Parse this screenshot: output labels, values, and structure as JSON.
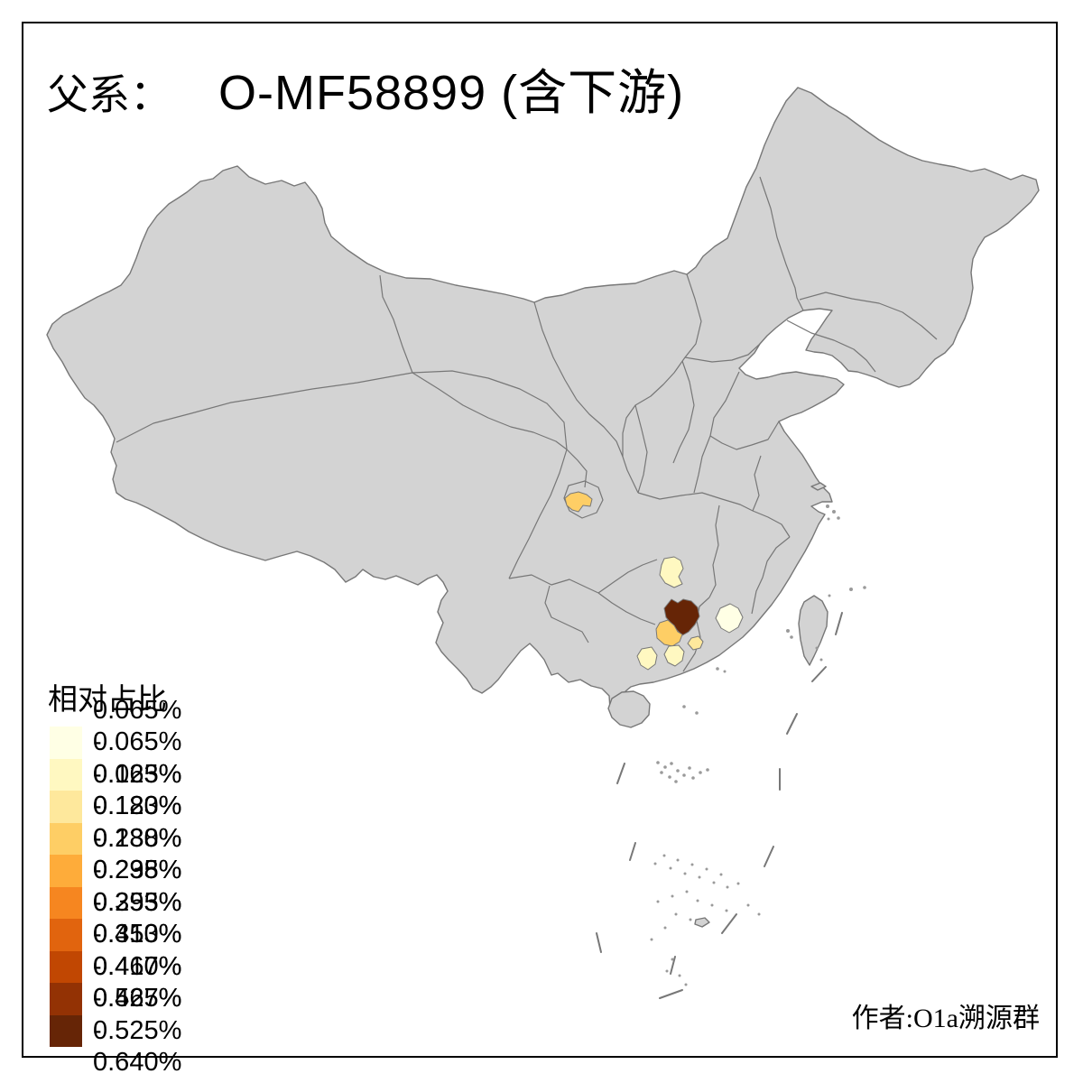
{
  "title": {
    "label": "父系：",
    "value": "O-MF58899 (含下游)"
  },
  "legend": {
    "title": "相对占比",
    "items": [
      {
        "range": "0.065% - 0.065%",
        "color": "#FFFFE5"
      },
      {
        "range": "0.065% - 0.123%",
        "color": "#FFF8C1"
      },
      {
        "range": "0.123% - 0.180%",
        "color": "#FEE89C"
      },
      {
        "range": "0.180% - 0.238%",
        "color": "#FECE65"
      },
      {
        "range": "0.238% - 0.295%",
        "color": "#FEAC3A"
      },
      {
        "range": "0.295% - 0.353%",
        "color": "#F68620"
      },
      {
        "range": "0.353% - 0.410%",
        "color": "#E1640E"
      },
      {
        "range": "0.410% - 0.467%",
        "color": "#C14702"
      },
      {
        "range": "0.467% - 0.525%",
        "color": "#933204"
      },
      {
        "range": "0.525% - 0.640%",
        "color": "#662506"
      }
    ]
  },
  "author": "作者:O1a溯源群",
  "map": {
    "land_fill": "#D3D3D3",
    "border_color": "#777777",
    "background": "#FFFFFF",
    "frame_color": "#000000",
    "highlighted_regions": [
      {
        "id": "chongqing-area",
        "class_index": 3
      },
      {
        "id": "hunan-west",
        "class_index": 1
      },
      {
        "id": "guangxi-north",
        "class_index": 9
      },
      {
        "id": "guangxi-central",
        "class_index": 3
      },
      {
        "id": "guangxi-east",
        "class_index": 2
      },
      {
        "id": "guangxi-south",
        "class_index": 1
      },
      {
        "id": "guangxi-southwest",
        "class_index": 1
      },
      {
        "id": "guangdong-north",
        "class_index": 0
      }
    ]
  }
}
